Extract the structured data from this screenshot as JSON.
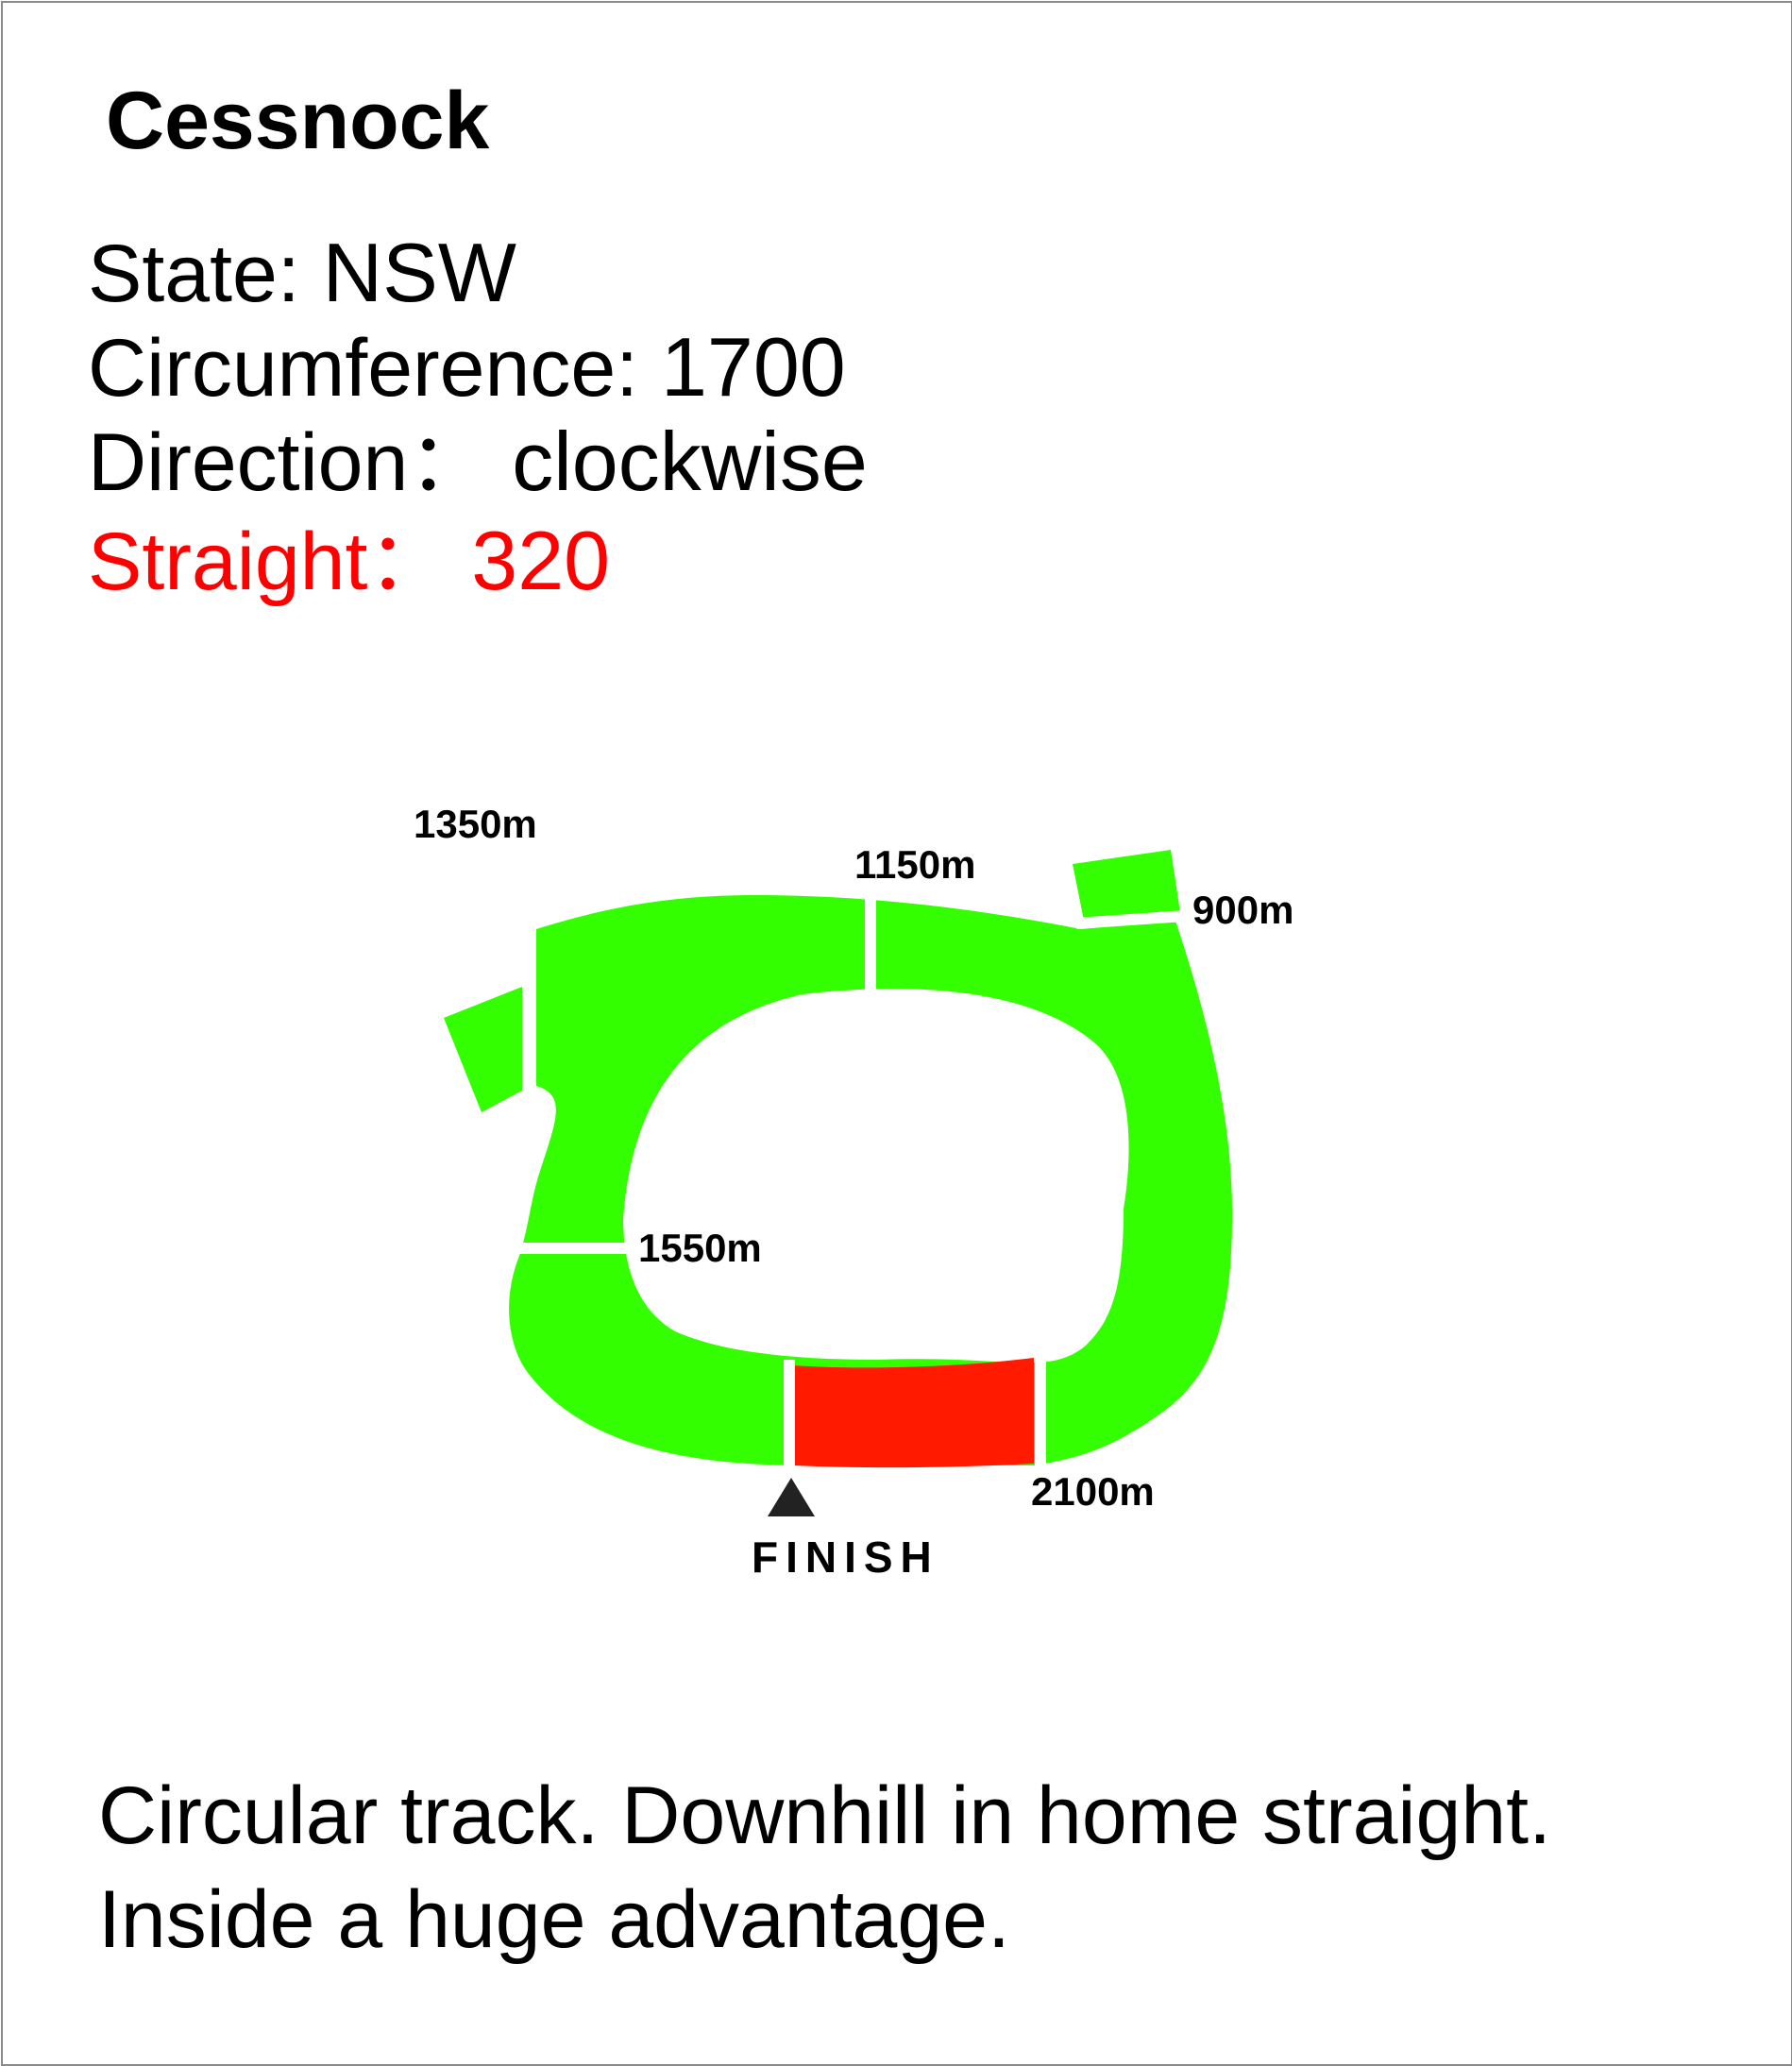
{
  "title": "Cessnock",
  "state": {
    "label": "State:",
    "value": "NSW"
  },
  "circumference": {
    "label": "Circumference:",
    "value": "1700"
  },
  "direction": {
    "label": "Direction：",
    "value": "clockwise"
  },
  "straight": {
    "label": "Straight：",
    "value": "320"
  },
  "description": [
    "Circular track. Downhill in home straight.",
    "Inside a huge advantage."
  ],
  "markers": {
    "m1350": "1350m",
    "m1150": "1150m",
    "m900": "900m",
    "m1550": "1550m",
    "m2100": "2100m"
  },
  "finish_label": "FINISH",
  "colors": {
    "track": "#33ff00",
    "straight": "#ff1a00",
    "straight_text": "#ff0000",
    "finish_marker": "#222222"
  }
}
